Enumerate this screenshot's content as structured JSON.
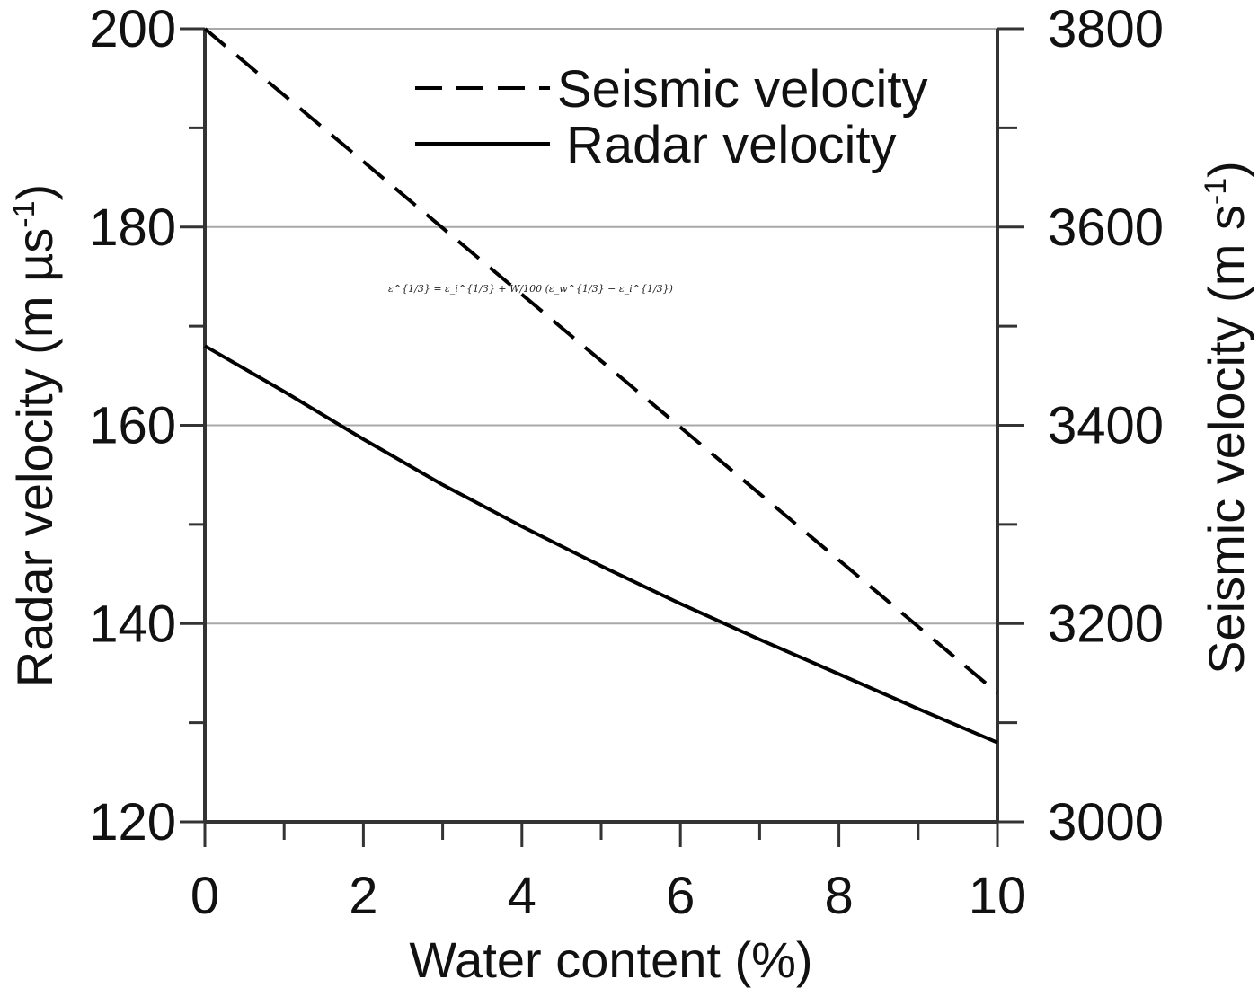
{
  "chart_data": {
    "type": "line",
    "xlabel": "Water content (%)",
    "ylabel_left": {
      "main": "Radar velocity (m µs",
      "sup": "-1",
      "close": ")"
    },
    "ylabel_right": {
      "main": "Seismic velocity (m s",
      "sup": "-1",
      "close": ")"
    },
    "xlim": [
      0,
      10
    ],
    "ylim_left": [
      120,
      200
    ],
    "ylim_right": [
      3000,
      3800
    ],
    "x_ticks": [
      "0",
      "2",
      "4",
      "6",
      "8",
      "10"
    ],
    "y_left_ticks": [
      "120",
      "140",
      "160",
      "180",
      "200"
    ],
    "y_right_ticks": [
      "3000",
      "3200",
      "3400",
      "3600",
      "3800"
    ],
    "grid": "horizontal",
    "legend_position": "top-right",
    "annotation": "ε^{1/3} = ε_i^{1/3} + W/100 (ε_w^{1/3} − ε_i^{1/3})",
    "series": [
      {
        "name": "Seismic velocity",
        "axis": "right",
        "style": "dashed",
        "color": "#000000",
        "x": [
          0,
          1,
          2,
          3,
          4,
          5,
          6,
          7,
          8,
          9,
          10
        ],
        "y": [
          3800,
          3733,
          3666,
          3599,
          3532,
          3465,
          3398,
          3331,
          3264,
          3197,
          3130
        ]
      },
      {
        "name": "Radar velocity",
        "axis": "left",
        "style": "solid",
        "color": "#000000",
        "x": [
          0,
          1,
          2,
          3,
          4,
          5,
          6,
          7,
          8,
          9,
          10
        ],
        "y": [
          168,
          163.4,
          158.6,
          154.0,
          149.8,
          145.8,
          142.0,
          138.4,
          134.9,
          131.4,
          128
        ]
      }
    ]
  }
}
